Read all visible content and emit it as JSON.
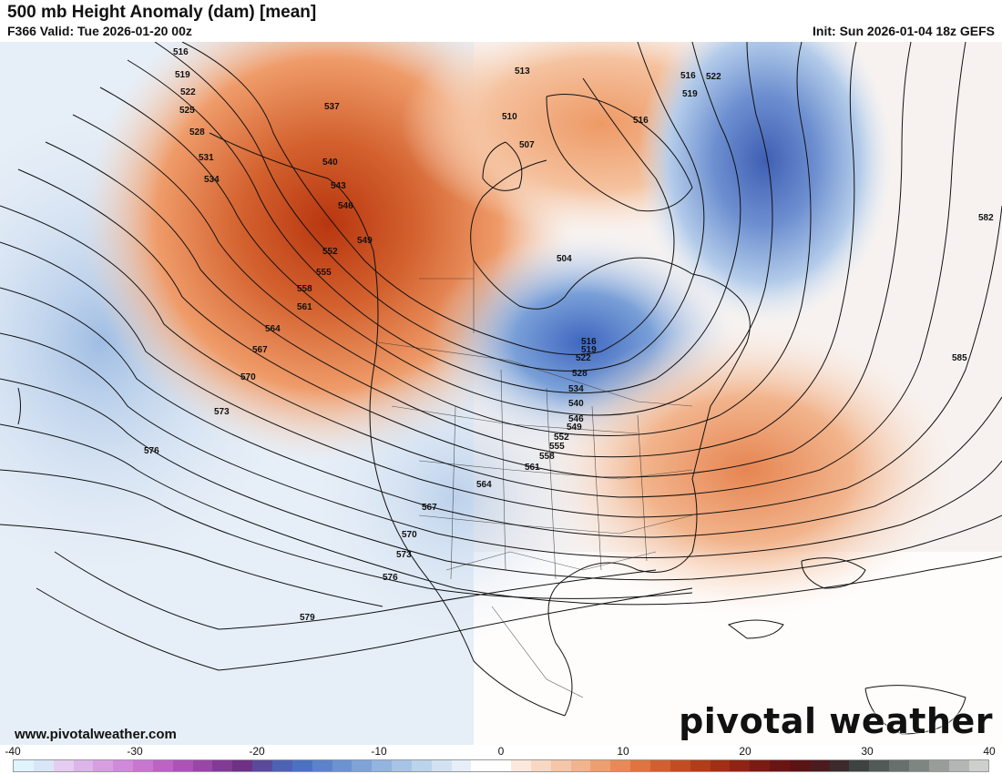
{
  "header": {
    "title": "500 mb Height Anomaly (dam) [mean]",
    "valid": "F366 Valid: Tue 2026-01-20 00z",
    "init": "Init: Sun 2026-01-04 18z GEFS"
  },
  "footer": {
    "website": "www.pivotalweather.com",
    "brand": "pivotal weather"
  },
  "contour_labels": [
    "516",
    "519",
    "522",
    "525",
    "528",
    "531",
    "534",
    "537",
    "540",
    "543",
    "546",
    "549",
    "552",
    "555",
    "558",
    "561",
    "564",
    "567",
    "570",
    "573",
    "576",
    "579",
    "582",
    "585",
    "504",
    "507",
    "510",
    "513"
  ],
  "colorbar": {
    "ticks": [
      "-40",
      "-30",
      "-20",
      "-10",
      "0",
      "10",
      "20",
      "30",
      "40"
    ],
    "colors": [
      "#e0f4fb",
      "#d9e6f7",
      "#e4cdf0",
      "#dcb5ea",
      "#d79fe2",
      "#d189dc",
      "#c975d2",
      "#bd63c6",
      "#ad52b8",
      "#9946a8",
      "#833a97",
      "#6e3185",
      "#5a4a9c",
      "#4d62b5",
      "#4b72c2",
      "#5a83cb",
      "#6b93d2",
      "#7ea3d9",
      "#92b4e0",
      "#a7c4e6",
      "#bcd3ec",
      "#d2e2f2",
      "#e6eff8",
      "#ffffff",
      "#ffffff",
      "#fbe9de",
      "#f8d8c3",
      "#f5c6a7",
      "#f2b48c",
      "#ee9f70",
      "#e88a57",
      "#df7441",
      "#d25f30",
      "#c34c22",
      "#b33c19",
      "#a22f14",
      "#8f2412",
      "#7c1b12",
      "#6a1513",
      "#5c1316",
      "#4d1a1f",
      "#3c2a2c",
      "#3e4240",
      "#515a57",
      "#67706d",
      "#7e8682",
      "#989d9a",
      "#b3b6b4",
      "#ced0ce"
    ]
  }
}
